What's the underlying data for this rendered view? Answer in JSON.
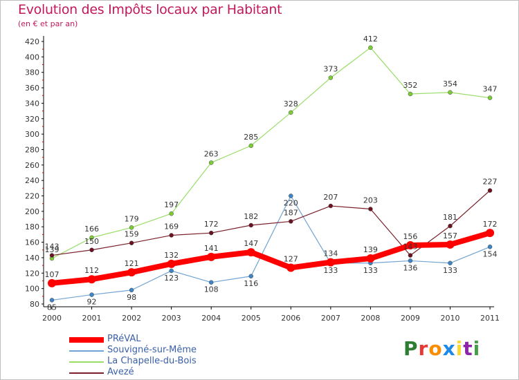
{
  "header": {
    "title": "Evolution des Impôts locaux par Habitant",
    "subtitle": "(en € et par an)"
  },
  "logo": {
    "letters": [
      "P",
      "r",
      "o",
      "x",
      "i",
      "t",
      "i"
    ],
    "colors": [
      "#2e7d32",
      "#e53935",
      "#fb8c00",
      "#1e88e5",
      "#fdd835",
      "#8e24aa",
      "#43a047"
    ]
  },
  "chart_data": {
    "type": "line",
    "title": "Evolution des Impôts locaux par Habitant",
    "subtitle": "(en € et par an)",
    "xlabel": "",
    "ylabel": "",
    "x": [
      "2000",
      "2001",
      "2002",
      "2003",
      "2004",
      "2005",
      "2006",
      "2007",
      "2008",
      "2009",
      "2010",
      "2011"
    ],
    "ylim": [
      80,
      420
    ],
    "yticks": [
      80,
      100,
      120,
      140,
      160,
      180,
      200,
      220,
      240,
      260,
      280,
      300,
      320,
      340,
      360,
      380,
      400,
      420
    ],
    "grid": false,
    "legend_position": "bottom-left",
    "series": [
      {
        "name": "PRéVAL",
        "color": "#ff0000",
        "values": [
          107,
          112,
          121,
          132,
          141,
          147,
          127,
          134,
          139,
          156,
          157,
          172
        ]
      },
      {
        "name": "Souvigné-sur-Même",
        "color": "#6fa3d3",
        "values": [
          85,
          92,
          98,
          123,
          108,
          116,
          220,
          133,
          133,
          136,
          133,
          154
        ]
      },
      {
        "name": "La Chapelle-du-Bois",
        "color": "#99dd66",
        "values": [
          139,
          166,
          179,
          197,
          263,
          285,
          328,
          373,
          412,
          352,
          354,
          347
        ]
      },
      {
        "name": "Avezé",
        "color": "#7a1f2b",
        "values": [
          143,
          150,
          159,
          169,
          172,
          182,
          187,
          207,
          203,
          143,
          181,
          227
        ]
      }
    ]
  }
}
